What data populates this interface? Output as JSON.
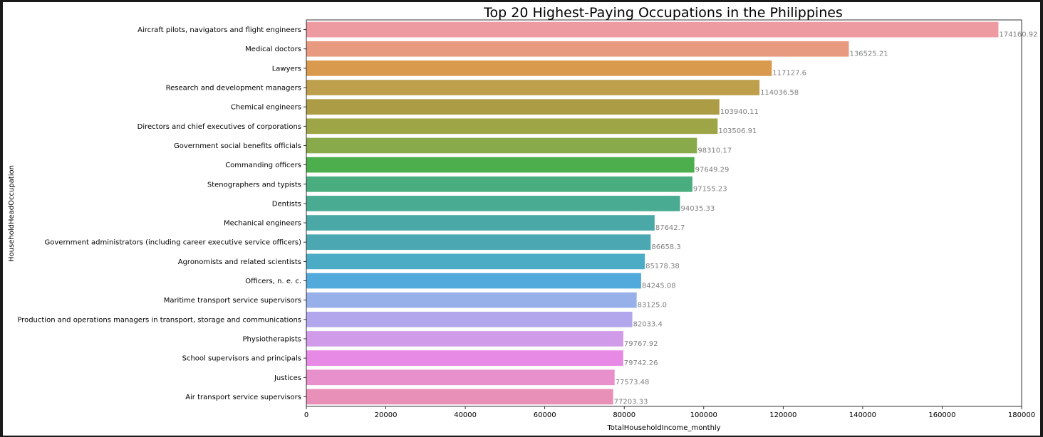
{
  "chart_data": {
    "type": "bar",
    "orientation": "horizontal",
    "title": "Top 20 Highest-Paying Occupations in the Philippines",
    "xlabel": "TotalHouseholdIncome_monthly",
    "ylabel": "HouseholdHeadOccupation",
    "xlim": [
      0,
      180000
    ],
    "xticks": [
      0,
      20000,
      40000,
      60000,
      80000,
      100000,
      120000,
      140000,
      160000,
      180000
    ],
    "xtick_labels": [
      "0",
      "20000",
      "40000",
      "60000",
      "80000",
      "100000",
      "120000",
      "140000",
      "160000",
      "180000"
    ],
    "grid": false,
    "categories": [
      "Aircraft pilots, navigators and flight engineers",
      "Medical doctors",
      "Lawyers",
      "Research and development managers",
      "Chemical engineers",
      "Directors and chief executives of corporations",
      "Government social benefits officials",
      "Commanding officers",
      "Stenographers and typists",
      "Dentists",
      "Mechanical engineers",
      "Government administrators (including career executive service officers)",
      "Agronomists and related scientists",
      "Officers, n. e. c.",
      "Maritime transport service supervisors",
      "Production and operations managers in transport, storage and communications",
      "Physiotherapists",
      "School supervisors and principals",
      "Justices",
      "Air transport service supervisors"
    ],
    "values": [
      174160.92,
      136525.21,
      117127.6,
      114036.58,
      103940.11,
      103506.91,
      98310.17,
      97649.29,
      97155.23,
      94035.33,
      87642.7,
      86658.3,
      85178.38,
      84245.08,
      83125.0,
      82033.4,
      79767.92,
      79742.26,
      77573.48,
      77203.33
    ],
    "value_labels": [
      "174160.92",
      "136525.21",
      "117127.6",
      "114036.58",
      "103940.11",
      "103506.91",
      "98310.17",
      "97649.29",
      "97155.23",
      "94035.33",
      "87642.7",
      "86658.3",
      "85178.38",
      "84245.08",
      "83125.0",
      "82033.4",
      "79767.92",
      "79742.26",
      "77573.48",
      "77203.33"
    ],
    "colors": [
      "#ed9aa0",
      "#e89a80",
      "#d99a4e",
      "#bea04c",
      "#ab9c45",
      "#9ea546",
      "#88aa4b",
      "#4cae4c",
      "#4aad80",
      "#49ab91",
      "#4aa9a6",
      "#4ba8b2",
      "#4cabc5",
      "#52a9dc",
      "#97b0e9",
      "#b2a6ec",
      "#d09be8",
      "#e68ae6",
      "#e890cc",
      "#e890b8"
    ],
    "label_color": "#808080"
  }
}
